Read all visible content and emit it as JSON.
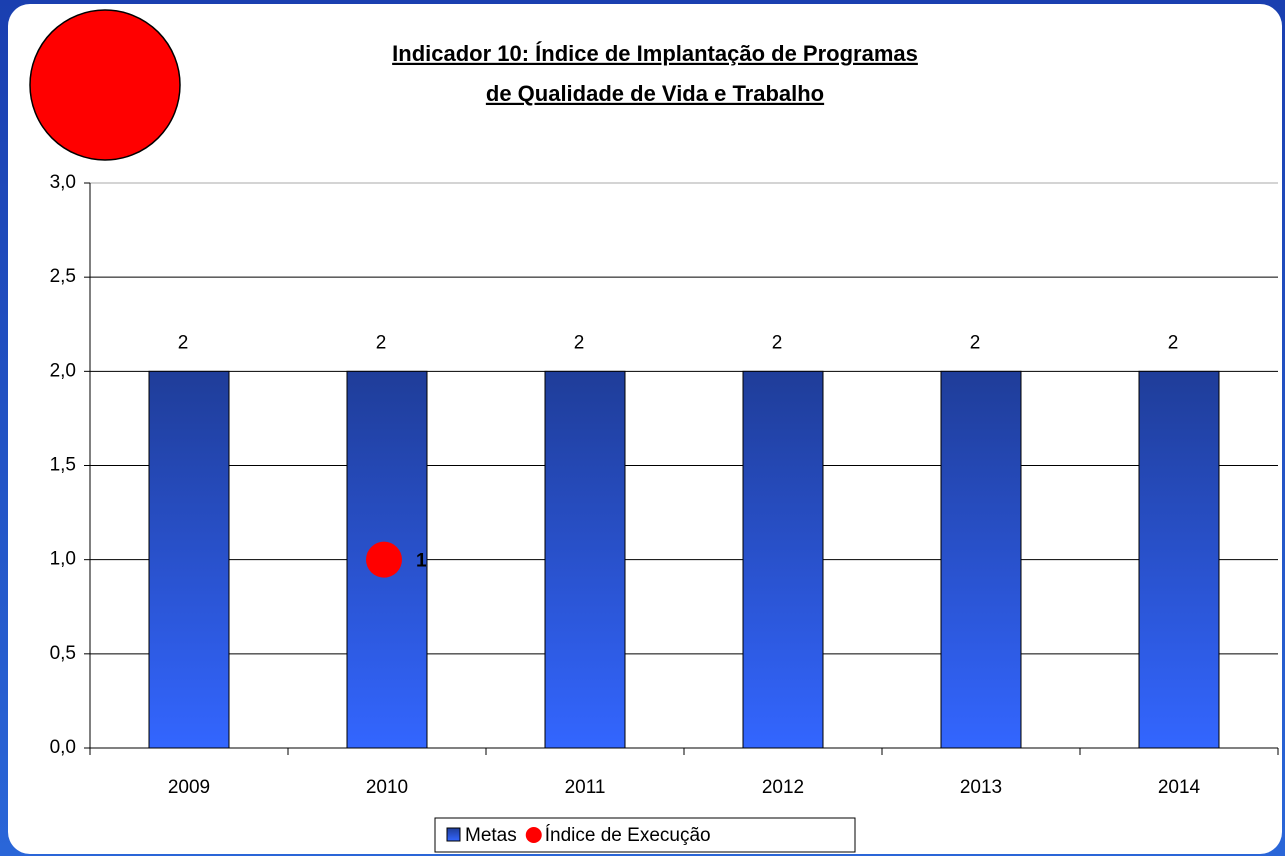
{
  "chart_data": {
    "type": "bar",
    "title": [
      "Indicador 10: Índice de Implantação de Programas",
      "de Qualidade de Vida e Trabalho"
    ],
    "categories": [
      "2009",
      "2010",
      "2011",
      "2012",
      "2013",
      "2014"
    ],
    "series": [
      {
        "name": "Metas",
        "type": "bar",
        "color": "#2f5ee6",
        "values": [
          2,
          2,
          2,
          2,
          2,
          2
        ]
      },
      {
        "name": "Índice de Execução",
        "type": "scatter",
        "color": "#ff0000",
        "values": [
          null,
          1,
          null,
          null,
          null,
          null
        ]
      }
    ],
    "ylim": [
      0,
      3
    ],
    "yticks": [
      {
        "value": 0,
        "label": "0,0"
      },
      {
        "value": 0.5,
        "label": "0,5"
      },
      {
        "value": 1,
        "label": "1,0"
      },
      {
        "value": 1.5,
        "label": "1,5"
      },
      {
        "value": 2,
        "label": "2,0"
      },
      {
        "value": 2.5,
        "label": "2,5"
      },
      {
        "value": 3,
        "label": "3,0"
      }
    ],
    "grid": true,
    "legend": "bottom"
  }
}
